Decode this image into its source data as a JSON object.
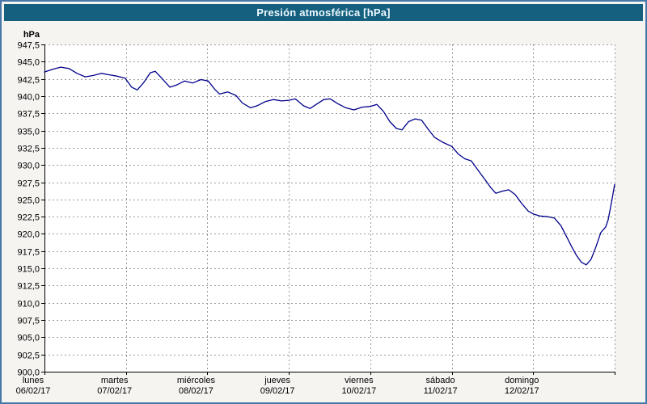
{
  "window": {
    "title": "Presión atmosférica [hPa]"
  },
  "colors": {
    "frame": "#4577a8",
    "title_bar": "#15607f",
    "title_text": "#eef9ff",
    "outer_bg": "#f5f4f1",
    "plot_bg": "#ffffff",
    "grid": "#9a9a9a",
    "axis": "#000000",
    "line": "#00008b"
  },
  "chart_data": {
    "type": "line",
    "title": "Presión atmosférica [hPa]",
    "legend_position": "none",
    "grid": "dashed",
    "y_axis": {
      "unit_label": "hPa",
      "min": 900.0,
      "max": 947.5,
      "tick_step": 2.5,
      "tick_labels": [
        "900,0",
        "902,5",
        "905,0",
        "907,5",
        "910,0",
        "912,5",
        "915,0",
        "917,5",
        "920,0",
        "922,5",
        "925,0",
        "927,5",
        "930,0",
        "932,5",
        "935,0",
        "937,5",
        "940,0",
        "942,5",
        "945,0",
        "947,5"
      ]
    },
    "x_axis": {
      "span_days": 7,
      "day_labels": [
        {
          "name": "lunes",
          "date": "06/02/17"
        },
        {
          "name": "martes",
          "date": "07/02/17"
        },
        {
          "name": "miércoles",
          "date": "08/02/17"
        },
        {
          "name": "jueves",
          "date": "09/02/17"
        },
        {
          "name": "viernes",
          "date": "10/02/17"
        },
        {
          "name": "sábado",
          "date": "11/02/17"
        },
        {
          "name": "domingo",
          "date": "12/02/17"
        }
      ]
    },
    "series": [
      {
        "name": "Presión atmosférica",
        "color": "#00008b",
        "points": [
          [
            0.0,
            943.5
          ],
          [
            0.1,
            943.9
          ],
          [
            0.2,
            944.2
          ],
          [
            0.3,
            944.0
          ],
          [
            0.4,
            943.3
          ],
          [
            0.5,
            942.8
          ],
          [
            0.6,
            943.0
          ],
          [
            0.7,
            943.3
          ],
          [
            0.79,
            943.1
          ],
          [
            0.89,
            942.9
          ],
          [
            0.99,
            942.6
          ],
          [
            1.07,
            941.3
          ],
          [
            1.14,
            940.9
          ],
          [
            1.22,
            942.0
          ],
          [
            1.3,
            943.4
          ],
          [
            1.36,
            943.6
          ],
          [
            1.44,
            942.6
          ],
          [
            1.54,
            941.3
          ],
          [
            1.62,
            941.6
          ],
          [
            1.72,
            942.2
          ],
          [
            1.82,
            941.9
          ],
          [
            1.92,
            942.4
          ],
          [
            2.01,
            942.2
          ],
          [
            2.09,
            941.0
          ],
          [
            2.15,
            940.3
          ],
          [
            2.25,
            940.6
          ],
          [
            2.35,
            940.1
          ],
          [
            2.43,
            939.0
          ],
          [
            2.53,
            938.3
          ],
          [
            2.61,
            938.6
          ],
          [
            2.71,
            939.2
          ],
          [
            2.81,
            939.5
          ],
          [
            2.91,
            939.3
          ],
          [
            3.0,
            939.4
          ],
          [
            3.08,
            939.6
          ],
          [
            3.18,
            938.6
          ],
          [
            3.26,
            938.2
          ],
          [
            3.35,
            938.9
          ],
          [
            3.43,
            939.5
          ],
          [
            3.51,
            939.6
          ],
          [
            3.6,
            938.9
          ],
          [
            3.7,
            938.3
          ],
          [
            3.8,
            938.0
          ],
          [
            3.9,
            938.4
          ],
          [
            4.0,
            938.5
          ],
          [
            4.08,
            938.8
          ],
          [
            4.16,
            937.8
          ],
          [
            4.24,
            936.3
          ],
          [
            4.32,
            935.3
          ],
          [
            4.39,
            935.1
          ],
          [
            4.47,
            936.3
          ],
          [
            4.55,
            936.7
          ],
          [
            4.63,
            936.5
          ],
          [
            4.71,
            935.2
          ],
          [
            4.79,
            934.0
          ],
          [
            4.89,
            933.3
          ],
          [
            5.0,
            932.7
          ],
          [
            5.08,
            931.6
          ],
          [
            5.16,
            930.9
          ],
          [
            5.24,
            930.6
          ],
          [
            5.32,
            929.3
          ],
          [
            5.4,
            928.0
          ],
          [
            5.48,
            926.7
          ],
          [
            5.54,
            925.9
          ],
          [
            5.62,
            926.2
          ],
          [
            5.7,
            926.4
          ],
          [
            5.78,
            925.7
          ],
          [
            5.86,
            924.4
          ],
          [
            5.94,
            923.3
          ],
          [
            6.0,
            922.9
          ],
          [
            6.08,
            922.6
          ],
          [
            6.18,
            922.5
          ],
          [
            6.26,
            922.3
          ],
          [
            6.34,
            921.2
          ],
          [
            6.41,
            919.6
          ],
          [
            6.47,
            918.2
          ],
          [
            6.53,
            916.9
          ],
          [
            6.59,
            915.9
          ],
          [
            6.65,
            915.5
          ],
          [
            6.71,
            916.3
          ],
          [
            6.77,
            918.1
          ],
          [
            6.83,
            920.2
          ],
          [
            6.89,
            921.0
          ],
          [
            6.92,
            922.0
          ],
          [
            6.96,
            924.5
          ],
          [
            7.0,
            927.2
          ]
        ]
      }
    ]
  }
}
